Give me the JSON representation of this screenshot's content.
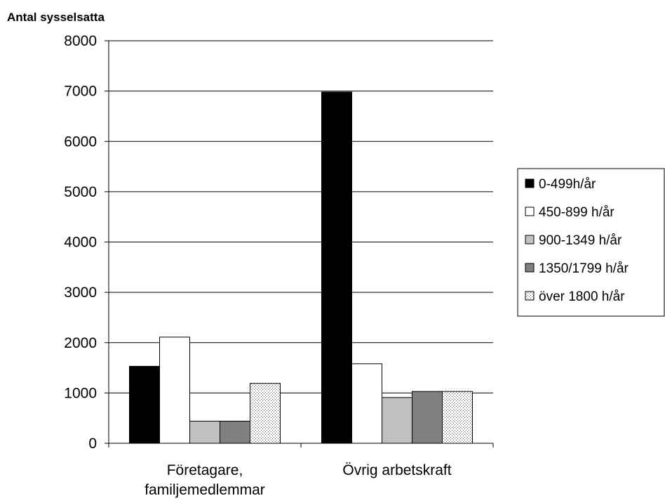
{
  "chart_data": {
    "type": "bar",
    "title": "",
    "ylabel": "Antal sysselsatta",
    "xlabel": "",
    "ylim": [
      0,
      8000
    ],
    "yticks": [
      0,
      1000,
      2000,
      3000,
      4000,
      5000,
      6000,
      7000,
      8000
    ],
    "grid": "horizontal",
    "legend_position": "right",
    "categories": [
      [
        "Företagare,",
        "familjemedlemmar"
      ],
      [
        "Övrig arbetskraft"
      ]
    ],
    "series": [
      {
        "name": "0-499h/år",
        "values": [
          1530,
          6980
        ],
        "color": "#000000",
        "pattern": "solid"
      },
      {
        "name": "450-899 h/år",
        "values": [
          2110,
          1580
        ],
        "color": "#ffffff",
        "pattern": "solid"
      },
      {
        "name": "900-1349 h/år",
        "values": [
          440,
          910
        ],
        "color": "#c0c0c0",
        "pattern": "solid"
      },
      {
        "name": "1350/1799 h/år",
        "values": [
          440,
          1030
        ],
        "color": "#808080",
        "pattern": "solid"
      },
      {
        "name": "över 1800 h/år",
        "values": [
          1190,
          1030
        ],
        "color": "#ffffff",
        "pattern": "dots"
      }
    ]
  }
}
